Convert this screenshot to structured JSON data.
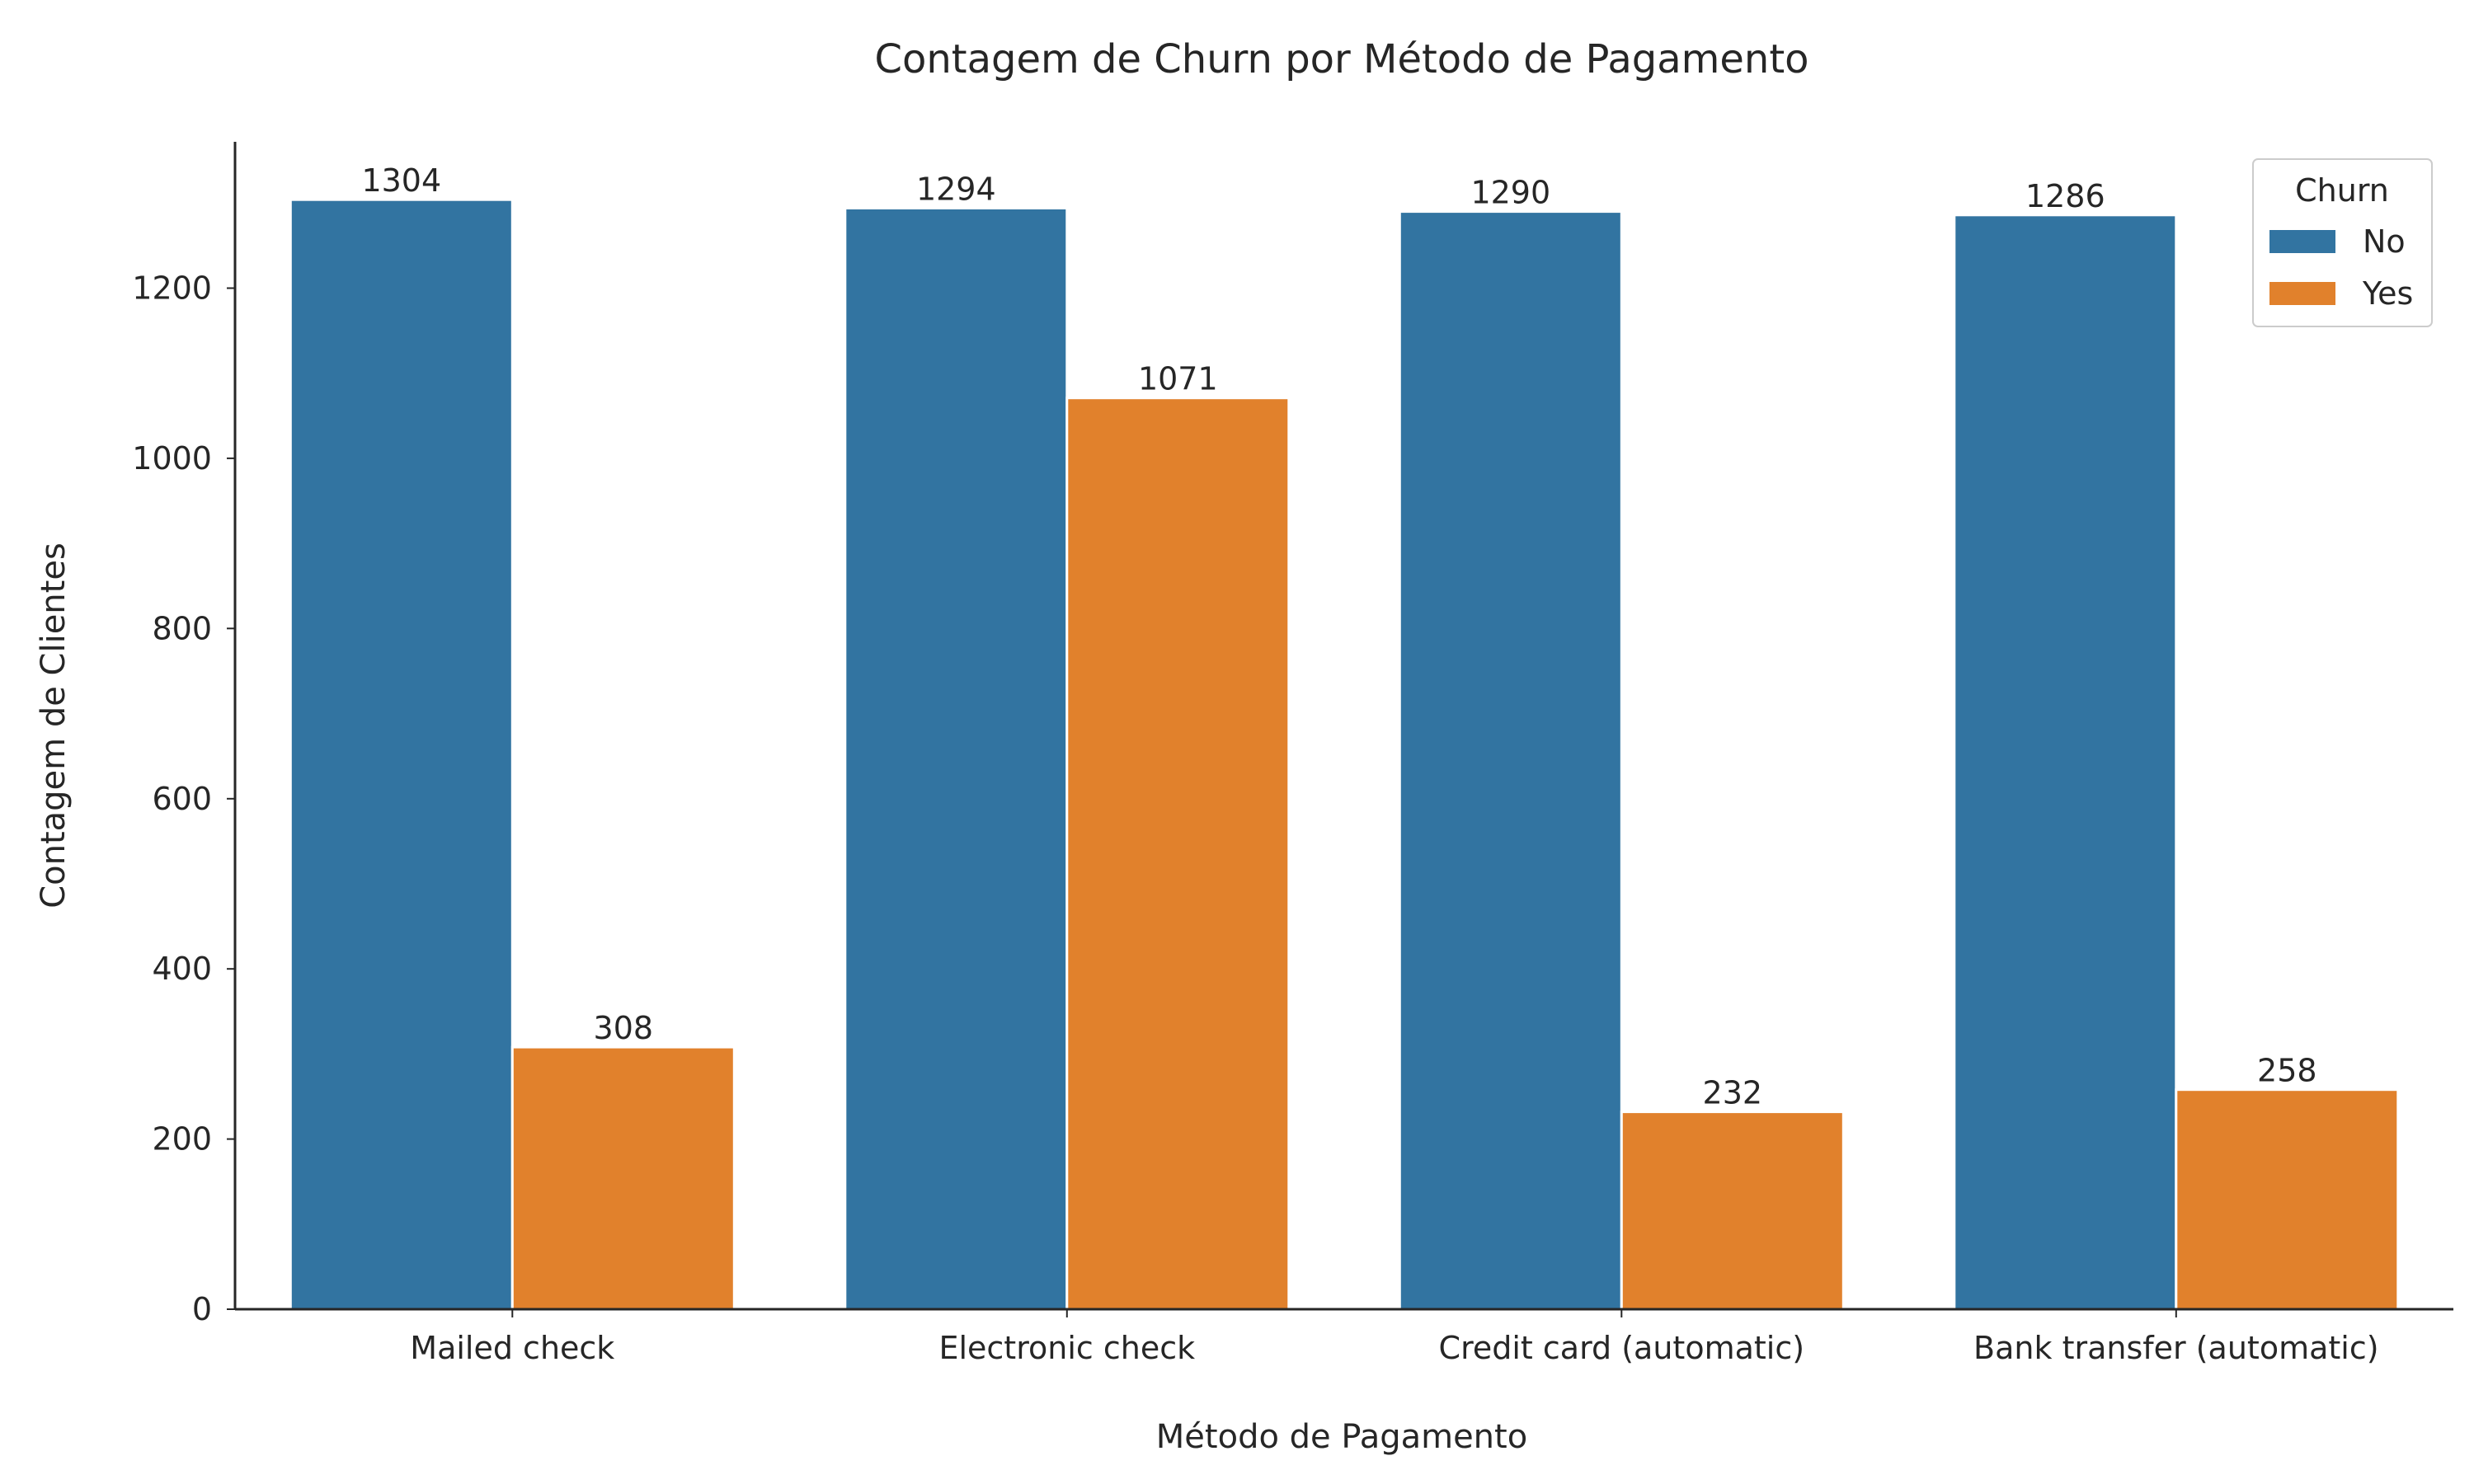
{
  "chart_data": {
    "type": "bar",
    "title": "Contagem de Churn por Método de Pagamento",
    "xlabel": "Método de Pagamento",
    "ylabel": "Contagem de Clientes",
    "categories": [
      "Mailed check",
      "Electronic check",
      "Credit card (automatic)",
      "Bank transfer (automatic)"
    ],
    "series": [
      {
        "name": "No",
        "color": "#3274a1",
        "values": [
          1304,
          1294,
          1290,
          1286
        ]
      },
      {
        "name": "Yes",
        "color": "#e1812c",
        "values": [
          308,
          1071,
          232,
          258
        ]
      }
    ],
    "ylim": [
      0,
      1372
    ],
    "yticks": [
      0,
      200,
      400,
      600,
      800,
      1000,
      1200
    ],
    "legend": {
      "title": "Churn",
      "position": "top-right"
    },
    "grid": false
  }
}
